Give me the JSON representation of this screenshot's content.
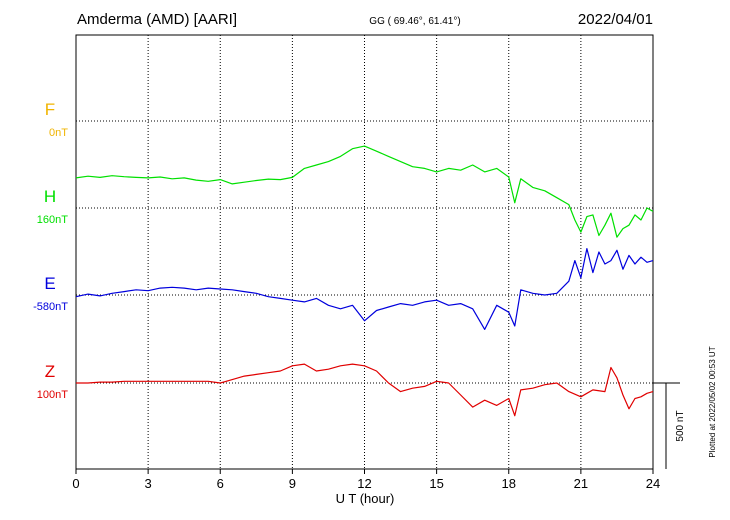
{
  "header": {
    "station": "Amderma (AMD)  [AARI]",
    "coords": "GG ( 69.46°,  61.41°)",
    "date": "2022/04/01"
  },
  "footer": {
    "plotted_note": "Plotted at 2022/05/02 00:53 UT",
    "scale_label": "500 nT"
  },
  "chart_data": {
    "type": "line",
    "title": "",
    "xlabel": "U T (hour)",
    "ylabel": "",
    "xlim": [
      0,
      24
    ],
    "x_ticks": [
      "0",
      "3",
      "6",
      "9",
      "12",
      "15",
      "18",
      "21",
      "24"
    ],
    "grid": true,
    "scale_bar_nT": 500,
    "series": [
      {
        "name": "F",
        "baseline_label": "0nT",
        "color": "#f0b400",
        "x": [],
        "values": []
      },
      {
        "name": "H",
        "baseline_label": "160nT",
        "color": "#00e000",
        "x": [
          0,
          0.5,
          1,
          1.5,
          2,
          2.5,
          3,
          3.5,
          4,
          4.5,
          5,
          5.5,
          6,
          6.5,
          7,
          7.5,
          8,
          8.5,
          9,
          9.5,
          10,
          10.5,
          11,
          11.5,
          12,
          12.5,
          13,
          13.5,
          14,
          14.5,
          15,
          15.5,
          16,
          16.5,
          17,
          17.5,
          18,
          18.25,
          18.5,
          19,
          19.5,
          20,
          20.5,
          20.75,
          21,
          21.25,
          21.5,
          21.75,
          22,
          22.25,
          22.5,
          22.75,
          23,
          23.25,
          23.5,
          23.75,
          24
        ],
        "values": [
          175,
          185,
          178,
          188,
          182,
          178,
          175,
          180,
          170,
          175,
          162,
          155,
          165,
          140,
          150,
          160,
          168,
          165,
          178,
          230,
          250,
          270,
          300,
          345,
          360,
          330,
          300,
          270,
          240,
          230,
          210,
          230,
          220,
          250,
          210,
          230,
          180,
          30,
          170,
          120,
          100,
          60,
          20,
          -70,
          -140,
          -50,
          -40,
          -160,
          -100,
          -30,
          -170,
          -120,
          -100,
          -40,
          -70,
          0,
          -20
        ]
      },
      {
        "name": "E",
        "baseline_label": "-580nT",
        "color": "#0000dd",
        "x": [
          0,
          0.5,
          1,
          1.5,
          2,
          2.5,
          3,
          3.5,
          4,
          4.5,
          5,
          5.5,
          6,
          6.5,
          7,
          7.5,
          8,
          8.5,
          9,
          9.5,
          10,
          10.5,
          11,
          11.5,
          12,
          12.5,
          13,
          13.5,
          14,
          14.5,
          15,
          15.5,
          16,
          16.5,
          17,
          17.5,
          18,
          18.25,
          18.5,
          19,
          19.5,
          20,
          20.5,
          20.75,
          21,
          21.25,
          21.5,
          21.75,
          22,
          22.25,
          22.5,
          22.75,
          23,
          23.25,
          23.5,
          23.75,
          24
        ],
        "values": [
          -10,
          5,
          -5,
          10,
          20,
          30,
          25,
          40,
          45,
          40,
          30,
          40,
          35,
          30,
          20,
          10,
          -10,
          -20,
          -30,
          -40,
          -20,
          -60,
          -80,
          -60,
          -150,
          -90,
          -70,
          -50,
          -60,
          -40,
          -30,
          -60,
          -50,
          -80,
          -200,
          -60,
          -100,
          -180,
          30,
          10,
          0,
          10,
          80,
          200,
          100,
          270,
          130,
          250,
          180,
          200,
          260,
          150,
          230,
          180,
          220,
          190,
          200
        ]
      },
      {
        "name": "Z",
        "baseline_label": "100nT",
        "color": "#e00000",
        "x": [
          0,
          0.5,
          1,
          1.5,
          2,
          2.5,
          3,
          3.5,
          4,
          4.5,
          5,
          5.5,
          6,
          6.5,
          7,
          7.5,
          8,
          8.5,
          9,
          9.5,
          10,
          10.5,
          11,
          11.5,
          12,
          12.5,
          13,
          13.5,
          14,
          14.5,
          15,
          15.5,
          16,
          16.5,
          17,
          17.5,
          18,
          18.25,
          18.5,
          19,
          19.5,
          20,
          20.5,
          21,
          21.25,
          21.5,
          22,
          22.25,
          22.5,
          22.75,
          23,
          23.25,
          23.5,
          23.75,
          24
        ],
        "values": [
          0,
          0,
          5,
          5,
          10,
          10,
          10,
          10,
          10,
          10,
          10,
          10,
          0,
          20,
          40,
          50,
          60,
          70,
          100,
          110,
          70,
          80,
          100,
          110,
          100,
          70,
          0,
          -50,
          -30,
          -20,
          10,
          0,
          -70,
          -140,
          -100,
          -130,
          -90,
          -190,
          -40,
          -30,
          -10,
          0,
          -50,
          -80,
          -60,
          -40,
          -50,
          90,
          30,
          -70,
          -150,
          -90,
          -80,
          -60,
          -50
        ]
      }
    ]
  }
}
